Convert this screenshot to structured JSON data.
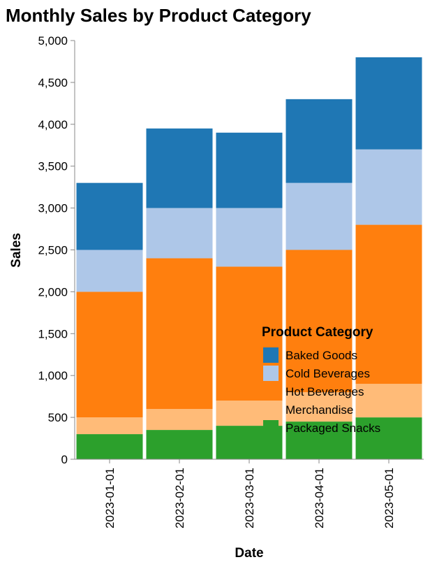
{
  "chart_data": {
    "type": "bar",
    "stacked": true,
    "title": "Monthly Sales by Product Category",
    "xlabel": "Date",
    "ylabel": "Sales",
    "ylim": [
      0,
      5000
    ],
    "yticks": [
      0,
      500,
      1000,
      1500,
      2000,
      2500,
      3000,
      3500,
      4000,
      4500,
      5000
    ],
    "ytick_labels": [
      "0",
      "500",
      "1,000",
      "1,500",
      "2,000",
      "2,500",
      "3,000",
      "3,500",
      "4,000",
      "4,500",
      "5,000"
    ],
    "categories": [
      "2023-01-01",
      "2023-02-01",
      "2023-03-01",
      "2023-04-01",
      "2023-05-01"
    ],
    "legend_title": "Product Category",
    "legend_position": "inside bottom-right",
    "grid": false,
    "series": [
      {
        "name": "Packaged Snacks",
        "color": "#2ca02c",
        "values": [
          300,
          350,
          400,
          450,
          500
        ]
      },
      {
        "name": "Merchandise",
        "color": "#ffbb78",
        "values": [
          200,
          250,
          300,
          350,
          400
        ]
      },
      {
        "name": "Hot Beverages",
        "color": "#ff7f0e",
        "values": [
          1500,
          1800,
          1600,
          1700,
          1900
        ]
      },
      {
        "name": "Cold Beverages",
        "color": "#aec7e8",
        "values": [
          500,
          600,
          700,
          800,
          900
        ]
      },
      {
        "name": "Baked Goods",
        "color": "#1f77b4",
        "values": [
          800,
          950,
          900,
          1000,
          1100
        ]
      }
    ],
    "legend_order": [
      "Baked Goods",
      "Cold Beverages",
      "Hot Beverages",
      "Merchandise",
      "Packaged Snacks"
    ]
  }
}
